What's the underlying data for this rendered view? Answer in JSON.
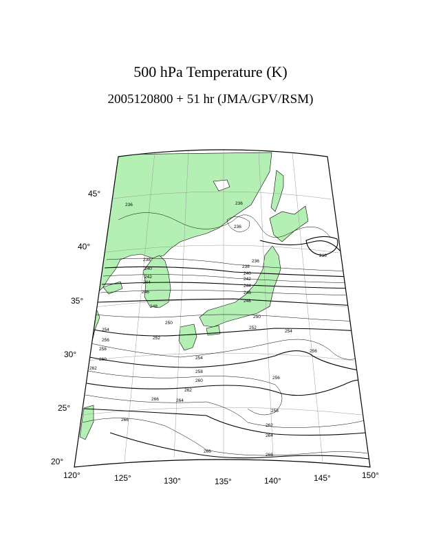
{
  "header": {
    "title": "500 hPa Temperature (K)",
    "subtitle": "2005120800 + 51 hr (JMA/GPV/RSM)"
  },
  "map": {
    "projection": "conic",
    "lon_range": [
      120,
      150
    ],
    "lat_range": [
      20,
      47
    ],
    "land_color": "#b4f0b4",
    "ocean_color": "#ffffff",
    "lat_tick_labels": [
      "20°",
      "25°",
      "30°",
      "35°",
      "40°",
      "45°"
    ],
    "lon_tick_labels": [
      "120°",
      "125°",
      "130°",
      "135°",
      "140°",
      "145°",
      "150°"
    ],
    "contour_labels": [
      "236",
      "236",
      "236",
      "236",
      "236",
      "238",
      "238",
      "240",
      "240",
      "242",
      "242",
      "244",
      "244",
      "246",
      "246",
      "248",
      "248",
      "250",
      "250",
      "252",
      "252",
      "254",
      "254",
      "254",
      "256",
      "256",
      "256",
      "258",
      "258",
      "258",
      "260",
      "260",
      "262",
      "262",
      "262",
      "264",
      "264",
      "266",
      "266",
      "266",
      "266"
    ]
  }
}
